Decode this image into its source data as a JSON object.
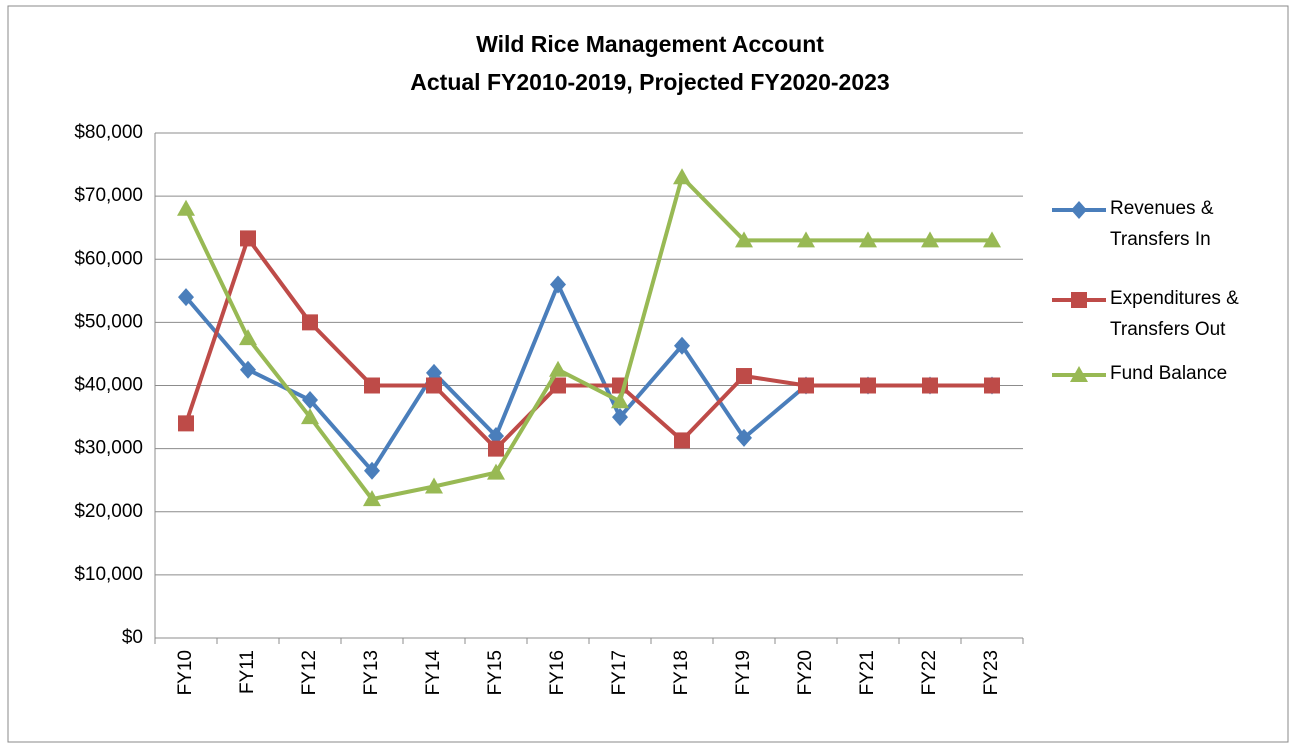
{
  "chart_data": {
    "type": "line",
    "title": "Wild Rice Management Account",
    "subtitle": "Actual FY2010-2019,  Projected FY2020-2023",
    "categories": [
      "FY10",
      "FY11",
      "FY12",
      "FY13",
      "FY14",
      "FY15",
      "FY16",
      "FY17",
      "FY18",
      "FY19",
      "FY20",
      "FY21",
      "FY22",
      "FY23"
    ],
    "series": [
      {
        "name": "Revenues & Transfers In",
        "color": "#4a7ebb",
        "marker": "diamond",
        "values": [
          54000,
          42500,
          37700,
          26500,
          42000,
          32000,
          56000,
          35000,
          46300,
          31700,
          40000,
          40000,
          40000,
          40000
        ]
      },
      {
        "name": "Expenditures & Transfers Out",
        "color": "#be4b48",
        "marker": "square",
        "values": [
          34000,
          63300,
          50000,
          40000,
          40000,
          30000,
          40000,
          40000,
          31300,
          41500,
          40000,
          40000,
          40000,
          40000
        ]
      },
      {
        "name": "Fund Balance",
        "color": "#98b954",
        "marker": "triangle",
        "values": [
          68000,
          47500,
          35000,
          22000,
          24000,
          26200,
          42500,
          37500,
          73000,
          63000,
          63000,
          63000,
          63000,
          63000
        ]
      }
    ],
    "ylim": [
      0,
      80000
    ],
    "yticks": [
      {
        "value": 0,
        "label": "$0"
      },
      {
        "value": 10000,
        "label": "$10,000"
      },
      {
        "value": 20000,
        "label": "$20,000"
      },
      {
        "value": 30000,
        "label": "$30,000"
      },
      {
        "value": 40000,
        "label": "$40,000"
      },
      {
        "value": 50000,
        "label": "$50,000"
      },
      {
        "value": 60000,
        "label": "$60,000"
      },
      {
        "value": 70000,
        "label": "$70,000"
      },
      {
        "value": 80000,
        "label": "$80,000"
      }
    ],
    "grid": true,
    "legend": "right"
  }
}
